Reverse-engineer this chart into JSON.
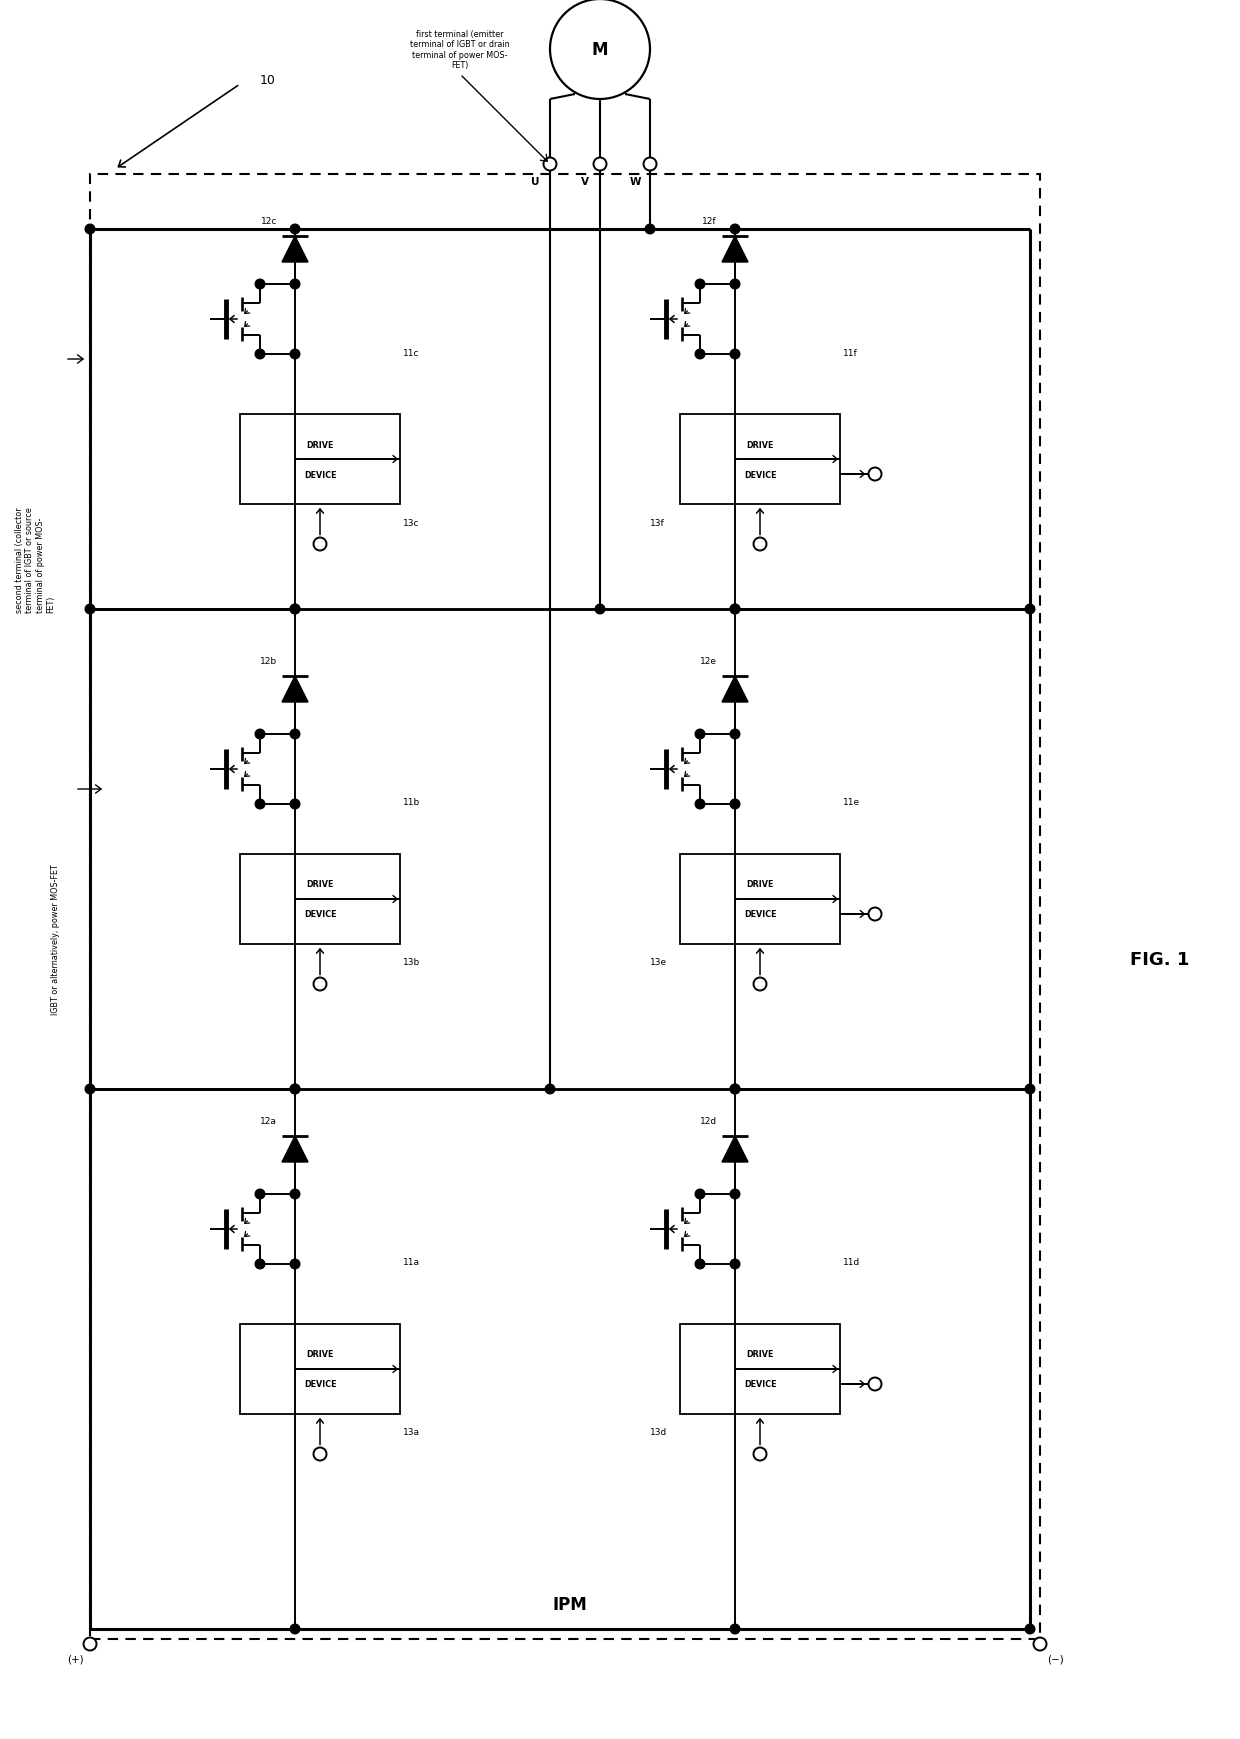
{
  "fig_width": 12.4,
  "fig_height": 17.4,
  "dpi": 100,
  "bg_color": "#ffffff",
  "title": "FIG. 1",
  "ipm_label": "IPM",
  "label_10": "10",
  "ann_second": "second terminal (collector\nterminal of IGBT or source\nterminal of power MOS-\nFET)",
  "ann_first": "first terminal (emitter\nterminal of IGBT or drain\nterminal of power MOS-\nFET)",
  "ann_igbt": "IGBT or alternatively, power MOS-FET",
  "plus_label": "(+)",
  "minus_label": "(−)"
}
